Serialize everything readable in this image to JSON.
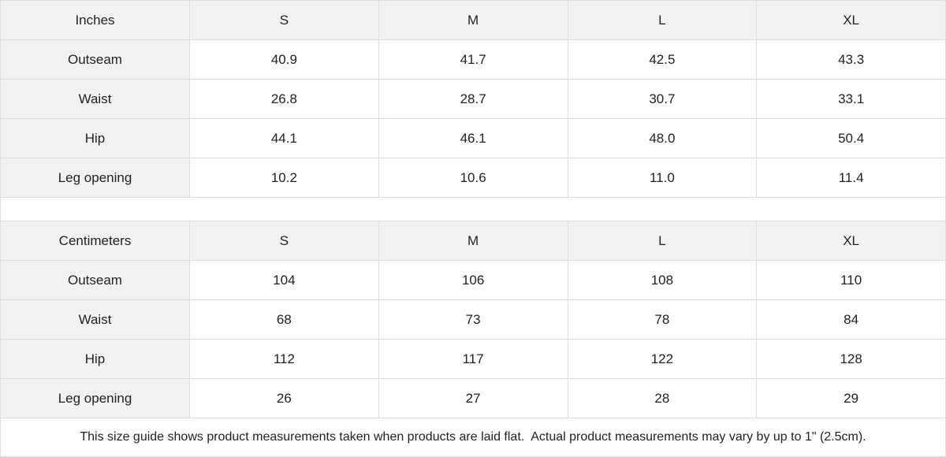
{
  "tables": [
    {
      "unit": "Inches",
      "sizes": [
        "S",
        "M",
        "L",
        "XL"
      ],
      "rows": [
        {
          "label": "Outseam",
          "values": [
            "40.9",
            "41.7",
            "42.5",
            "43.3"
          ]
        },
        {
          "label": "Waist",
          "values": [
            "26.8",
            "28.7",
            "30.7",
            "33.1"
          ]
        },
        {
          "label": "Hip",
          "values": [
            "44.1",
            "46.1",
            "48.0",
            "50.4"
          ]
        },
        {
          "label": "Leg opening",
          "values": [
            "10.2",
            "10.6",
            "11.0",
            "11.4"
          ]
        }
      ]
    },
    {
      "unit": "Centimeters",
      "sizes": [
        "S",
        "M",
        "L",
        "XL"
      ],
      "rows": [
        {
          "label": "Outseam",
          "values": [
            "104",
            "106",
            "108",
            "110"
          ]
        },
        {
          "label": "Waist",
          "values": [
            "68",
            "73",
            "78",
            "84"
          ]
        },
        {
          "label": "Hip",
          "values": [
            "112",
            "117",
            "122",
            "128"
          ]
        },
        {
          "label": "Leg opening",
          "values": [
            "26",
            "27",
            "28",
            "29"
          ]
        }
      ]
    }
  ],
  "footnote": "This size guide shows product measurements taken when products are laid flat.  Actual product measurements may vary by up to 1\" (2.5cm).",
  "colors": {
    "header_bg": "#f2f2f2",
    "border": "#dedede",
    "text": "#222222"
  }
}
